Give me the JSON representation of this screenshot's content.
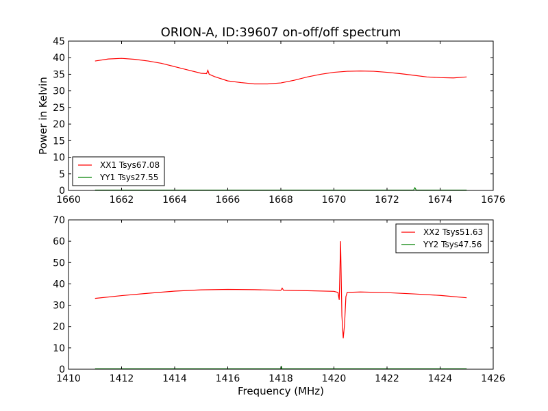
{
  "title": "ORION-A, ID:39607 on-off/off spectrum",
  "colors": {
    "xx": "#ff0000",
    "yy": "#008000"
  },
  "chart_data": [
    {
      "type": "line",
      "xlabel": "",
      "ylabel": "Power in Kelvin",
      "xlim": [
        1660,
        1676
      ],
      "ylim": [
        0,
        45
      ],
      "xticks": [
        1660,
        1662,
        1664,
        1666,
        1668,
        1670,
        1672,
        1674,
        1676
      ],
      "yticks": [
        0,
        5,
        10,
        15,
        20,
        25,
        30,
        35,
        40,
        45
      ],
      "grid": false,
      "legend_position": "lower-left",
      "series": [
        {
          "name": "XX1 Tsys67.08",
          "color": "#ff0000",
          "x": [
            1661.0,
            1661.5,
            1662.0,
            1662.5,
            1663.0,
            1663.5,
            1664.0,
            1664.5,
            1665.0,
            1665.2,
            1665.25,
            1665.3,
            1665.5,
            1666.0,
            1666.5,
            1667.0,
            1667.5,
            1668.0,
            1668.5,
            1669.0,
            1669.5,
            1670.0,
            1670.5,
            1671.0,
            1671.5,
            1672.0,
            1672.5,
            1673.0,
            1673.5,
            1674.0,
            1674.5,
            1675.0
          ],
          "y": [
            39.0,
            39.6,
            39.8,
            39.5,
            39.0,
            38.3,
            37.3,
            36.3,
            35.3,
            35.2,
            36.2,
            35.0,
            34.3,
            33.0,
            32.5,
            32.1,
            32.1,
            32.4,
            33.2,
            34.2,
            35.0,
            35.6,
            35.9,
            36.0,
            35.9,
            35.6,
            35.2,
            34.7,
            34.2,
            34.0,
            33.9,
            34.2
          ]
        },
        {
          "name": "YY1 Tsys27.55",
          "color": "#008000",
          "x": [
            1661.0,
            1668.0,
            1673.0,
            1673.05,
            1673.1,
            1675.0
          ],
          "y": [
            0.1,
            0.1,
            0.1,
            0.8,
            0.1,
            0.1
          ]
        }
      ]
    },
    {
      "type": "line",
      "xlabel": "Frequency (MHz)",
      "ylabel": "",
      "xlim": [
        1410,
        1426
      ],
      "ylim": [
        0,
        70
      ],
      "xticks": [
        1410,
        1412,
        1414,
        1416,
        1418,
        1420,
        1422,
        1424,
        1426
      ],
      "yticks": [
        0,
        10,
        20,
        30,
        40,
        50,
        60,
        70
      ],
      "grid": false,
      "legend_position": "upper-right",
      "series": [
        {
          "name": "XX2 Tsys51.63",
          "color": "#ff0000",
          "x": [
            1411.0,
            1412.0,
            1413.0,
            1414.0,
            1415.0,
            1416.0,
            1417.0,
            1418.0,
            1418.05,
            1418.1,
            1419.0,
            1420.0,
            1420.15,
            1420.2,
            1420.25,
            1420.3,
            1420.35,
            1420.4,
            1420.45,
            1420.5,
            1421.0,
            1422.0,
            1423.0,
            1424.0,
            1425.0
          ],
          "y": [
            33.2,
            34.5,
            35.6,
            36.6,
            37.2,
            37.4,
            37.3,
            37.0,
            38.0,
            37.0,
            36.8,
            36.5,
            36.0,
            32.5,
            60.0,
            25.0,
            14.5,
            21.0,
            34.0,
            36.0,
            36.2,
            35.9,
            35.3,
            34.6,
            33.5
          ]
        },
        {
          "name": "YY2 Tsys47.56",
          "color": "#008000",
          "x": [
            1411.0,
            1418.0,
            1418.02,
            1418.04,
            1425.0
          ],
          "y": [
            0.2,
            0.2,
            1.5,
            0.2,
            0.2
          ]
        }
      ]
    }
  ]
}
